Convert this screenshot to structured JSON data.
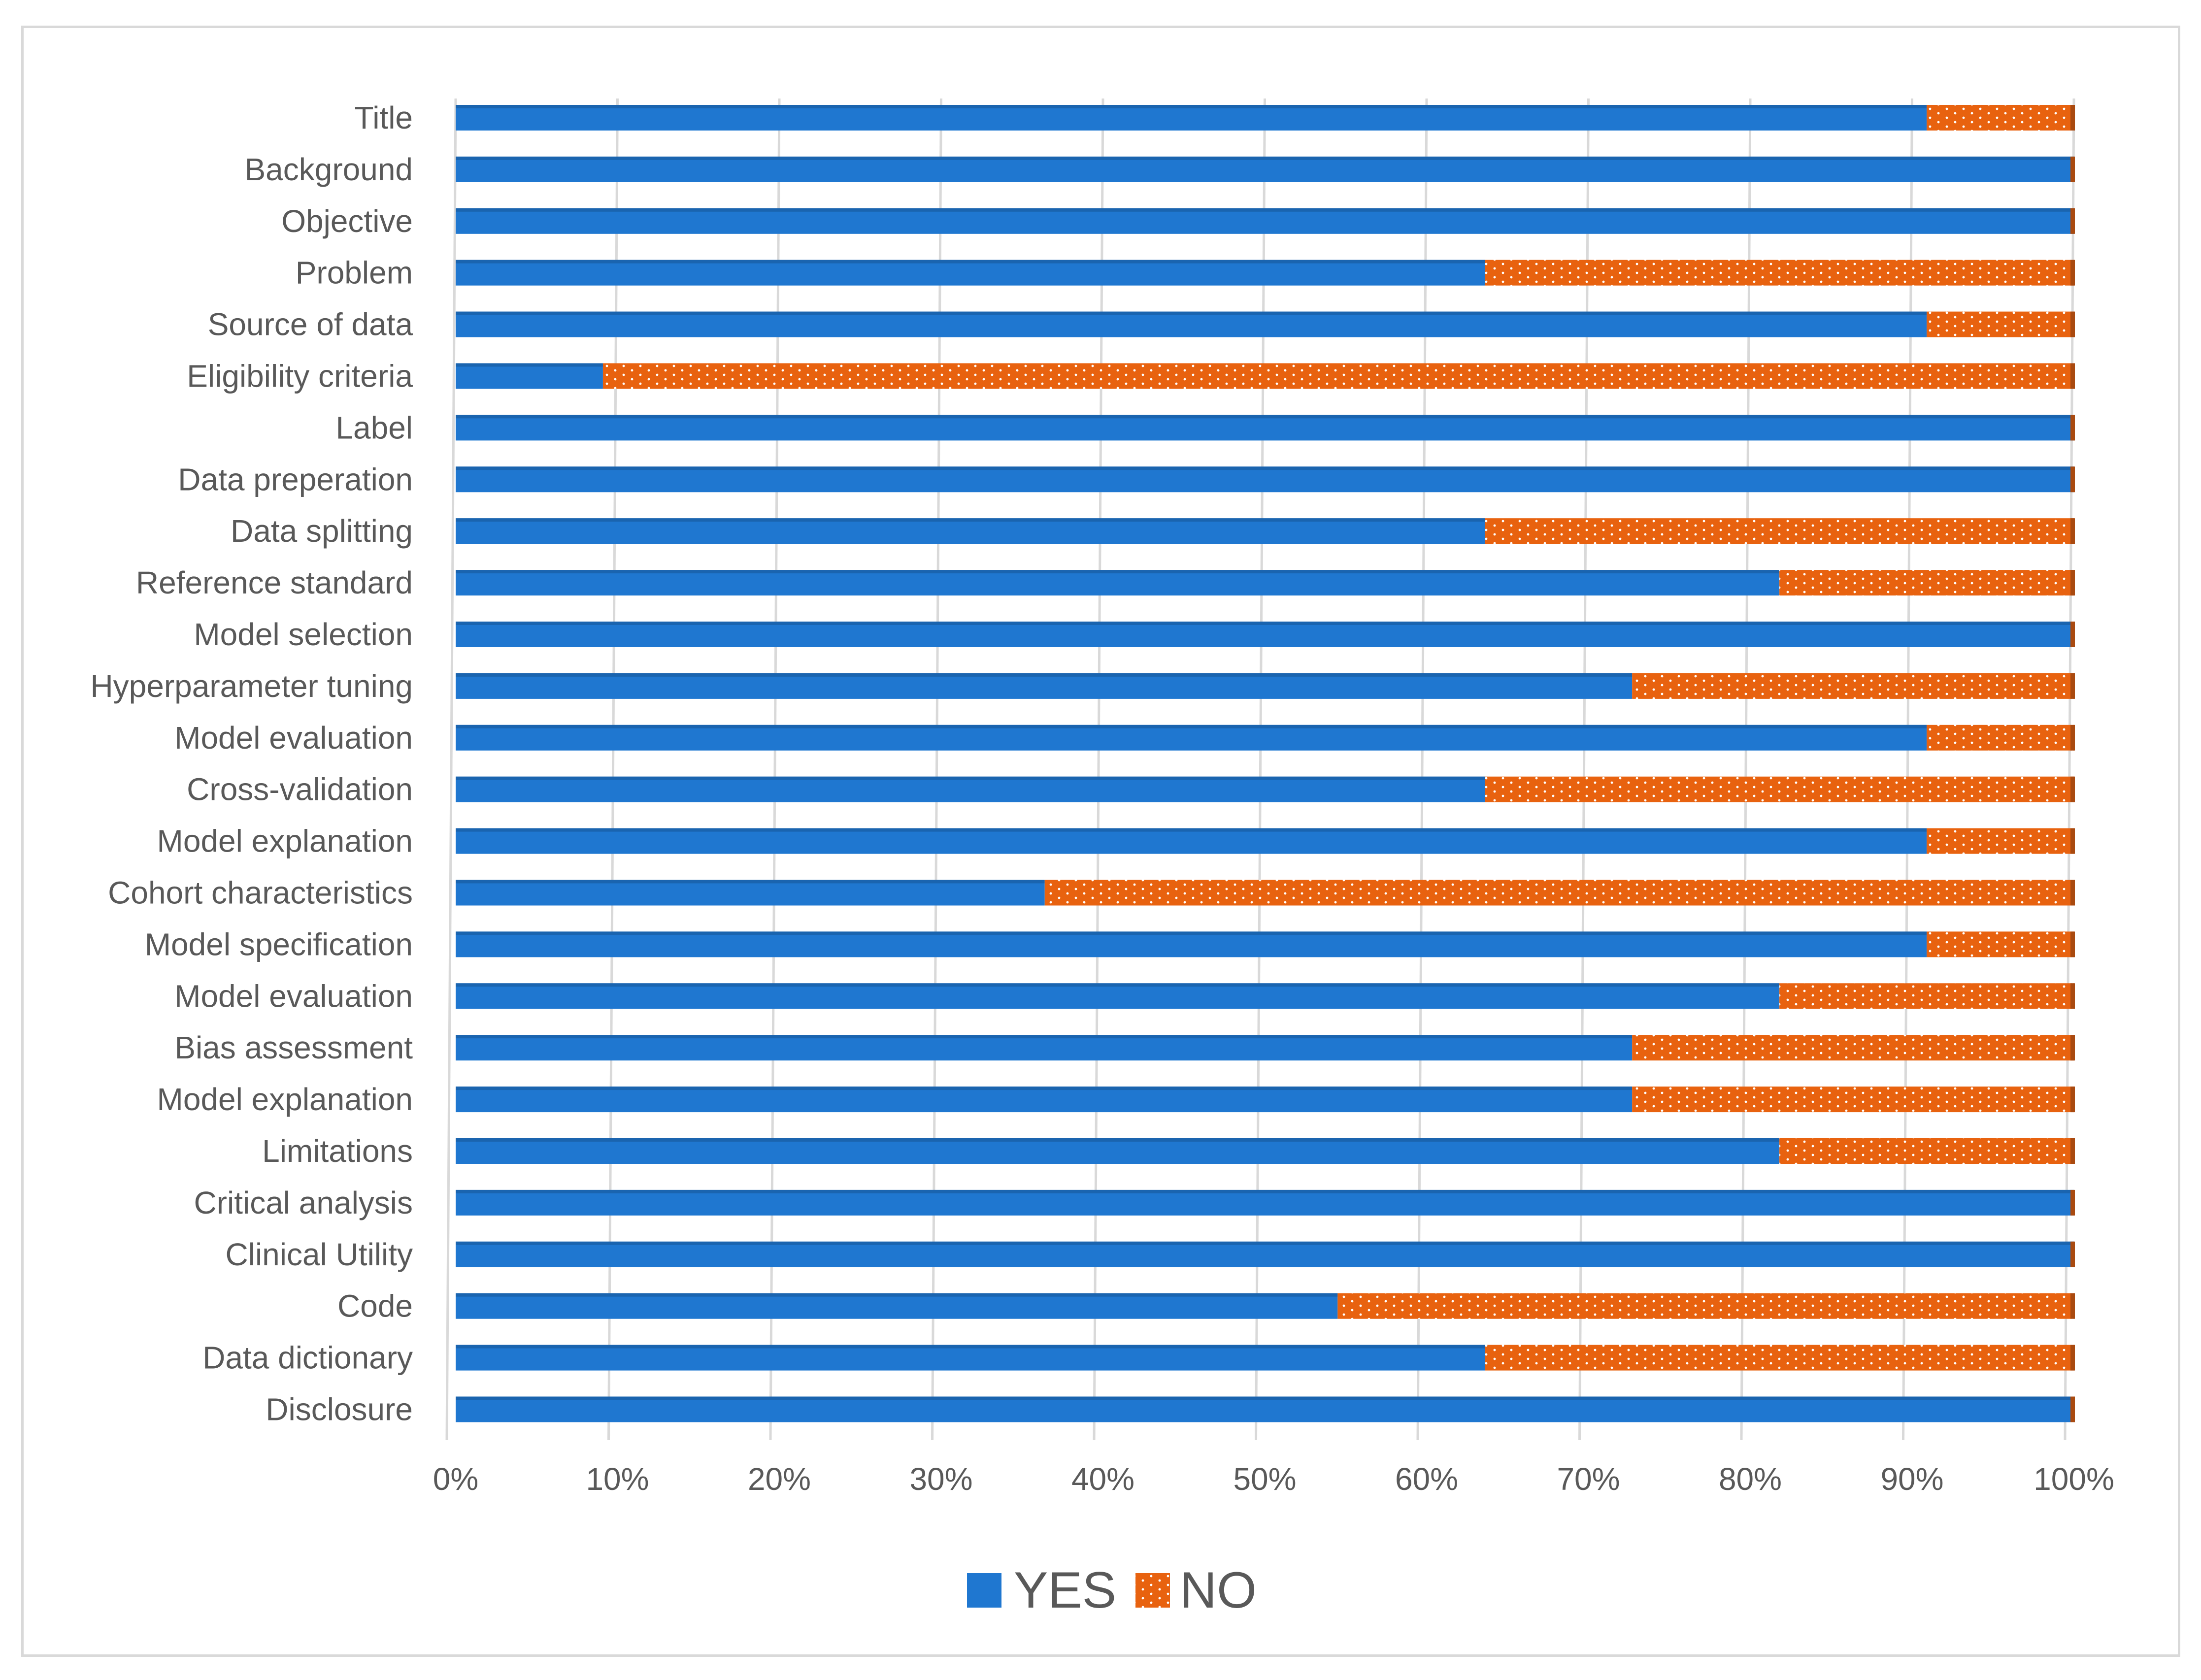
{
  "chart_data": {
    "type": "bar",
    "orientation": "horizontal",
    "stacked": true,
    "percent_stacked": true,
    "categories": [
      "Title",
      "Background",
      "Objective",
      "Problem",
      "Source of data",
      "Eligibility criteria",
      "Label",
      "Data preperation",
      "Data splitting",
      "Reference standard",
      "Model selection",
      "Hyperparameter tuning",
      "Model evaluation",
      "Cross-validation",
      "Model explanation",
      "Cohort characteristics",
      "Model specification",
      "Model evaluation",
      "Bias assessment",
      "Model explanation",
      "Limitations",
      "Critical analysis",
      "Clinical Utility",
      "Code",
      "Data dictionary",
      "Disclosure"
    ],
    "series": [
      {
        "name": "YES",
        "color": "#1f77d0",
        "values": [
          90.9,
          100,
          100,
          63.6,
          90.9,
          9.1,
          100,
          100,
          63.6,
          81.8,
          100,
          72.7,
          90.9,
          63.6,
          90.9,
          36.4,
          90.9,
          81.8,
          72.7,
          72.7,
          81.8,
          100,
          100,
          54.5,
          63.6,
          100
        ]
      },
      {
        "name": "NO",
        "color": "#e8620f",
        "pattern": "dotted",
        "values": [
          9.1,
          0,
          0,
          36.4,
          9.1,
          90.9,
          0,
          0,
          36.4,
          18.2,
          0,
          27.3,
          9.1,
          36.4,
          9.1,
          63.6,
          9.1,
          18.2,
          27.3,
          27.3,
          18.2,
          0,
          0,
          45.5,
          36.4,
          0
        ]
      }
    ],
    "xlim": [
      0,
      100
    ],
    "x_ticks": [
      "0%",
      "10%",
      "20%",
      "30%",
      "40%",
      "50%",
      "60%",
      "70%",
      "80%",
      "90%",
      "100%"
    ],
    "grid": true,
    "legend": "bottom-center"
  }
}
